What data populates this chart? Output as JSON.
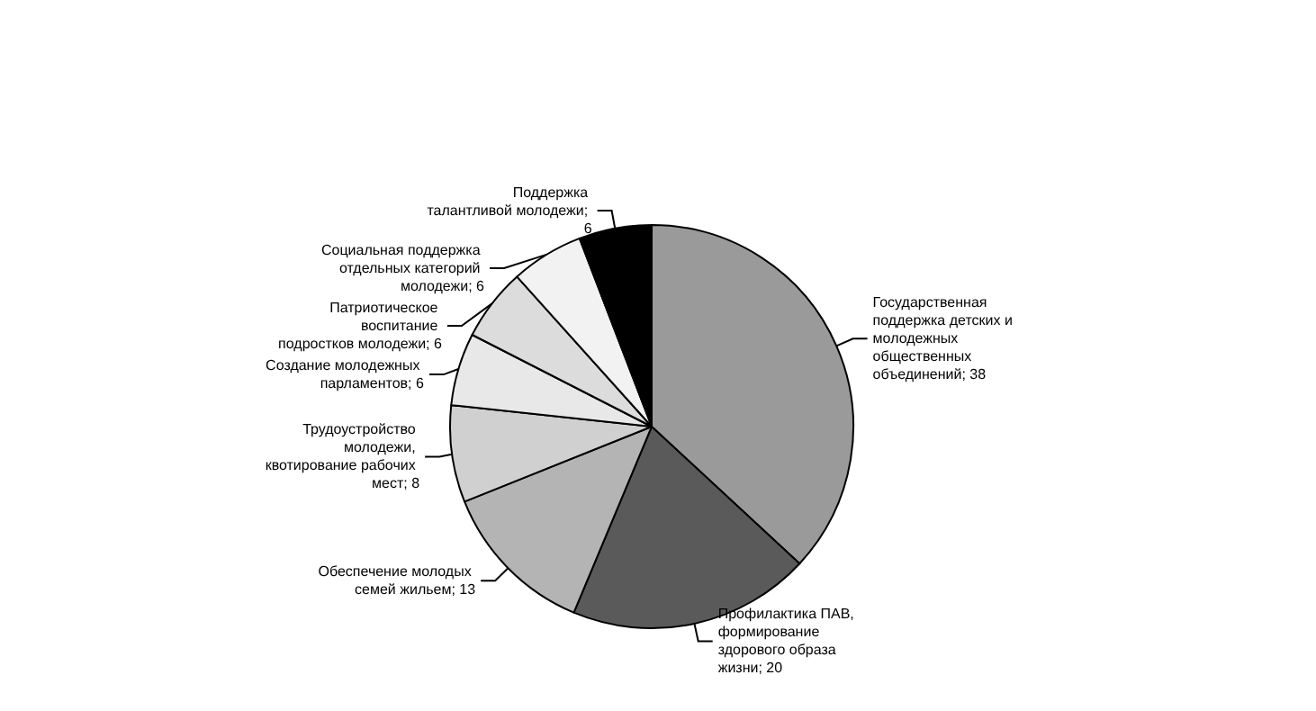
{
  "chart_data": {
    "type": "pie",
    "categories": [
      "Государственная поддержка детских и молодежных общественных объединений",
      "Профилактика ПАВ, формирование здорового образа жизни",
      "Обеспечение молодых семей жильем",
      "Трудоустройство молодежи, квотирование рабочих мест",
      "Создание молодежных парламентов",
      "Патриотическое воспитание подростков молодежи",
      "Социальная поддержка отдельных категорий молодежи",
      "Поддержка талантливой молодежи"
    ],
    "values": [
      38,
      20,
      13,
      8,
      6,
      6,
      6,
      6
    ],
    "colors": [
      "#9a9a9a",
      "#5a5a5a",
      "#b4b4b4",
      "#d0d0d0",
      "#e8e8e8",
      "#dcdcdc",
      "#f2f2f2",
      "#000000"
    ],
    "value_labels": [
      "; 38",
      "; 20",
      "; 13",
      "; 8",
      "; 6",
      "; 6",
      "; 6",
      "; 6"
    ],
    "legend": false
  }
}
